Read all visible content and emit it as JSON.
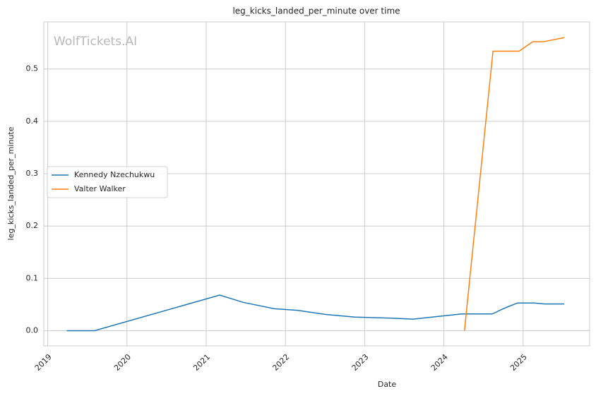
{
  "chart_data": {
    "type": "line",
    "title": "leg_kicks_landed_per_minute over time",
    "x_label": "Date",
    "y_label": "leg_kicks_landed_per_minute",
    "watermark": "WolfTickets.AI",
    "series": [
      {
        "name": "Kennedy Nzechukwu",
        "color": "#1f77b4",
        "x": [
          2019.24,
          2019.59,
          2021.17,
          2021.47,
          2021.86,
          2022.15,
          2022.51,
          2022.88,
          2023.35,
          2023.61,
          2024.22,
          2024.61,
          2024.78,
          2024.93,
          2025.14,
          2025.27,
          2025.52
        ],
        "values": [
          0,
          0,
          0.068,
          0.054,
          0.042,
          0.039,
          0.031,
          0.026,
          0.024,
          0.022,
          0.032,
          0.032,
          0.044,
          0.053,
          0.053,
          0.051,
          0.051
        ]
      },
      {
        "name": "Valter Walker",
        "color": "#ff7f0e",
        "x": [
          2024.26,
          2024.62,
          2024.95,
          2025.12,
          2025.25,
          2025.52
        ],
        "values": [
          0,
          0.534,
          0.534,
          0.552,
          0.552,
          0.56
        ]
      }
    ],
    "xlim": [
      2018.95,
      2025.84
    ],
    "xticks": [
      2019,
      2020,
      2021,
      2022,
      2023,
      2024,
      2025
    ],
    "ylim": [
      -0.029,
      0.59
    ],
    "yticks": [
      {
        "value": 0,
        "label": "0.0"
      },
      0.1,
      0.2,
      0.3,
      0.4,
      0.5
    ],
    "grid": true,
    "legend": "left"
  }
}
